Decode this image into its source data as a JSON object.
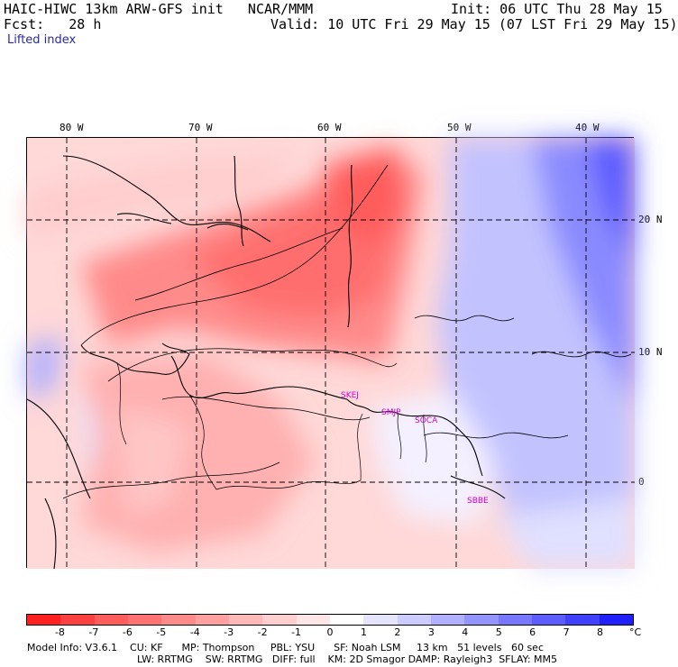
{
  "header": {
    "line1_left": "HAIC-HIWC 13km ARW-GFS init   NCAR/MMM",
    "line1_right": "Init: 06 UTC Thu 28 May 15",
    "line2_left": "Fcst:   28 h",
    "line2_right": "Valid: 10 UTC Fri 29 May 15 (07 LST Fri 29 May 15)",
    "field": "Lifted index"
  },
  "axes": {
    "lon_labels": [
      "80 W",
      "70 W",
      "60 W",
      "50 W",
      "40 W"
    ],
    "lat_labels": [
      "20 N",
      "10 N",
      "0"
    ]
  },
  "stations": [
    "SKEJ",
    "SMJP",
    "SOCA",
    "SBBE"
  ],
  "colorbar": {
    "ticks": [
      "-8",
      "-7",
      "-6",
      "-5",
      "-4",
      "-3",
      "-2",
      "-1",
      "0",
      "1",
      "2",
      "3",
      "4",
      "5",
      "6",
      "7",
      "8"
    ],
    "unit": "°C",
    "colors": [
      "#ff2020",
      "#ff4040",
      "#ff5c5c",
      "#ff7272",
      "#ff8a8a",
      "#ffa0a0",
      "#ffb8b8",
      "#ffcfcf",
      "#ffe6e6",
      "#ffffff",
      "#e4e4ff",
      "#ccccff",
      "#b0b0ff",
      "#9494ff",
      "#7878ff",
      "#5c5cff",
      "#4040ff",
      "#2020ff"
    ]
  },
  "footer": {
    "line1": "Model Info: V3.6.1    CU: KF      MP: Thompson     PBL: YSU      SF: Noah LSM     13 km   51 levels   60 sec",
    "line2": "LW: RRTMG    SW: RRTMG   DIFF: full    KM: 2D Smagor DAMP: Rayleigh3  SFLAY: MM5"
  }
}
